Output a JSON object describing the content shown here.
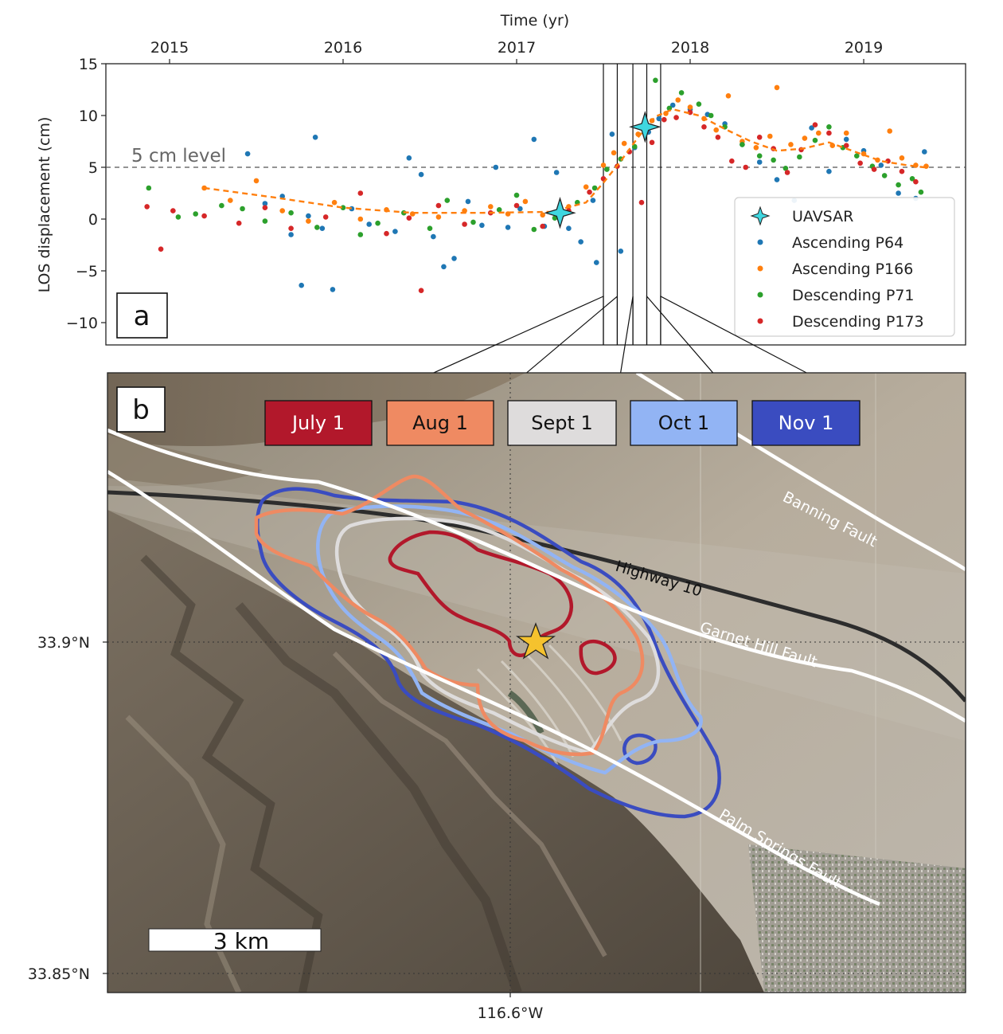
{
  "chart_data": [
    {
      "panel": "a",
      "type": "scatter",
      "xlabel": "Time (yr)",
      "ylabel": "LOS displacement (cm)",
      "xlim": [
        2014.6,
        2019.6
      ],
      "ylim": [
        -12,
        15
      ],
      "x_ticks": [
        "2015",
        "2016",
        "2017",
        "2018",
        "2019"
      ],
      "y_ticks": [
        "15",
        "10",
        "5",
        "0",
        "−5",
        "−10"
      ],
      "reference_line": {
        "y": 5,
        "label": "5 cm level",
        "style": "dashed",
        "color": "#555555"
      },
      "event_lines": [
        2017.5,
        2017.58,
        2017.67,
        2017.75,
        2017.83
      ],
      "legend_position": "lower right",
      "grid": false,
      "series": [
        {
          "name": "UAVSAR",
          "kind": "star",
          "color": "#3fd7e0",
          "points": [
            [
              2017.25,
              0.6
            ],
            [
              2017.74,
              8.9
            ]
          ]
        },
        {
          "name": "Ascending P64",
          "kind": "dot",
          "color": "#1f77b4",
          "points": [
            [
              2015.45,
              6.3
            ],
            [
              2015.55,
              1.5
            ],
            [
              2015.65,
              2.2
            ],
            [
              2015.7,
              -1.5
            ],
            [
              2015.76,
              -6.4
            ],
            [
              2015.8,
              0.3
            ],
            [
              2015.84,
              7.9
            ],
            [
              2015.88,
              -0.9
            ],
            [
              2015.94,
              -6.8
            ],
            [
              2016.05,
              1.0
            ],
            [
              2016.15,
              -0.5
            ],
            [
              2016.3,
              -1.2
            ],
            [
              2016.38,
              5.9
            ],
            [
              2016.45,
              4.3
            ],
            [
              2016.52,
              -1.7
            ],
            [
              2016.58,
              -4.6
            ],
            [
              2016.64,
              -3.8
            ],
            [
              2016.72,
              1.7
            ],
            [
              2016.8,
              -0.6
            ],
            [
              2016.88,
              5.0
            ],
            [
              2016.95,
              -0.8
            ],
            [
              2017.02,
              1.0
            ],
            [
              2017.1,
              7.7
            ],
            [
              2017.16,
              -0.7
            ],
            [
              2017.23,
              4.5
            ],
            [
              2017.3,
              -0.9
            ],
            [
              2017.37,
              -2.2
            ],
            [
              2017.44,
              1.8
            ],
            [
              2017.46,
              -4.2
            ],
            [
              2017.55,
              8.2
            ],
            [
              2017.6,
              -3.1
            ],
            [
              2017.68,
              6.9
            ],
            [
              2017.76,
              8.4
            ],
            [
              2017.82,
              9.7
            ],
            [
              2017.9,
              11.0
            ],
            [
              2018.0,
              10.6
            ],
            [
              2018.1,
              10.1
            ],
            [
              2018.2,
              9.2
            ],
            [
              2018.3,
              7.2
            ],
            [
              2018.4,
              5.5
            ],
            [
              2018.5,
              3.8
            ],
            [
              2018.6,
              1.8
            ],
            [
              2018.7,
              8.8
            ],
            [
              2018.8,
              4.6
            ],
            [
              2018.9,
              7.7
            ],
            [
              2019.0,
              6.6
            ],
            [
              2019.1,
              5.2
            ],
            [
              2019.2,
              2.5
            ],
            [
              2019.3,
              2.0
            ],
            [
              2019.35,
              6.5
            ]
          ]
        },
        {
          "name": "Ascending P166",
          "kind": "dot",
          "color": "#ff7f0e",
          "points": [
            [
              2015.2,
              3.0
            ],
            [
              2015.35,
              1.8
            ],
            [
              2015.5,
              3.7
            ],
            [
              2015.65,
              0.8
            ],
            [
              2015.8,
              -0.2
            ],
            [
              2015.95,
              1.6
            ],
            [
              2016.1,
              0.0
            ],
            [
              2016.25,
              0.9
            ],
            [
              2016.4,
              0.5
            ],
            [
              2016.55,
              0.2
            ],
            [
              2016.7,
              0.8
            ],
            [
              2016.85,
              1.2
            ],
            [
              2016.95,
              0.5
            ],
            [
              2017.05,
              1.7
            ],
            [
              2017.15,
              0.4
            ],
            [
              2017.3,
              1.2
            ],
            [
              2017.4,
              3.1
            ],
            [
              2017.5,
              5.2
            ],
            [
              2017.56,
              6.4
            ],
            [
              2017.62,
              7.3
            ],
            [
              2017.7,
              8.2
            ],
            [
              2017.78,
              9.5
            ],
            [
              2017.86,
              10.2
            ],
            [
              2017.93,
              11.5
            ],
            [
              2018.0,
              10.8
            ],
            [
              2018.08,
              9.7
            ],
            [
              2018.15,
              8.6
            ],
            [
              2018.22,
              11.9
            ],
            [
              2018.3,
              7.5
            ],
            [
              2018.38,
              6.9
            ],
            [
              2018.46,
              8.0
            ],
            [
              2018.5,
              12.7
            ],
            [
              2018.58,
              7.2
            ],
            [
              2018.66,
              7.8
            ],
            [
              2018.74,
              8.3
            ],
            [
              2018.82,
              7.1
            ],
            [
              2018.9,
              8.3
            ],
            [
              2019.0,
              6.3
            ],
            [
              2019.08,
              5.7
            ],
            [
              2019.15,
              8.5
            ],
            [
              2019.22,
              5.9
            ],
            [
              2019.3,
              5.2
            ],
            [
              2019.36,
              5.1
            ]
          ]
        },
        {
          "name": "Descending P71",
          "kind": "dot",
          "color": "#2ca02c",
          "points": [
            [
              2014.88,
              3.0
            ],
            [
              2015.05,
              0.2
            ],
            [
              2015.15,
              0.5
            ],
            [
              2015.3,
              1.3
            ],
            [
              2015.42,
              1.0
            ],
            [
              2015.55,
              -0.2
            ],
            [
              2015.7,
              0.6
            ],
            [
              2015.85,
              -0.8
            ],
            [
              2016.0,
              1.1
            ],
            [
              2016.1,
              -1.5
            ],
            [
              2016.2,
              -0.4
            ],
            [
              2016.35,
              0.6
            ],
            [
              2016.5,
              -0.9
            ],
            [
              2016.6,
              1.8
            ],
            [
              2016.75,
              -0.3
            ],
            [
              2016.9,
              0.9
            ],
            [
              2017.0,
              2.3
            ],
            [
              2017.1,
              -1.0
            ],
            [
              2017.22,
              0.1
            ],
            [
              2017.35,
              1.6
            ],
            [
              2017.45,
              3.0
            ],
            [
              2017.52,
              4.8
            ],
            [
              2017.6,
              5.8
            ],
            [
              2017.68,
              7.0
            ],
            [
              2017.76,
              8.8
            ],
            [
              2017.8,
              13.4
            ],
            [
              2017.88,
              10.7
            ],
            [
              2017.95,
              12.2
            ],
            [
              2018.05,
              11.1
            ],
            [
              2018.12,
              10.0
            ],
            [
              2018.2,
              8.9
            ],
            [
              2018.3,
              7.2
            ],
            [
              2018.4,
              6.1
            ],
            [
              2018.48,
              5.7
            ],
            [
              2018.55,
              4.9
            ],
            [
              2018.63,
              6.0
            ],
            [
              2018.72,
              7.6
            ],
            [
              2018.8,
              8.9
            ],
            [
              2018.88,
              6.9
            ],
            [
              2018.96,
              6.1
            ],
            [
              2019.05,
              5.1
            ],
            [
              2019.12,
              4.2
            ],
            [
              2019.2,
              3.3
            ],
            [
              2019.28,
              3.9
            ],
            [
              2019.33,
              2.6
            ]
          ]
        },
        {
          "name": "Descending P173",
          "kind": "dot",
          "color": "#d62728",
          "points": [
            [
              2014.87,
              1.2
            ],
            [
              2014.95,
              -2.9
            ],
            [
              2015.02,
              0.8
            ],
            [
              2015.2,
              0.3
            ],
            [
              2015.4,
              -0.4
            ],
            [
              2015.55,
              1.1
            ],
            [
              2015.7,
              -0.9
            ],
            [
              2015.9,
              0.2
            ],
            [
              2016.1,
              2.5
            ],
            [
              2016.25,
              -1.4
            ],
            [
              2016.38,
              0.1
            ],
            [
              2016.45,
              -6.9
            ],
            [
              2016.55,
              1.3
            ],
            [
              2016.7,
              -0.5
            ],
            [
              2016.85,
              0.6
            ],
            [
              2017.0,
              1.3
            ],
            [
              2017.15,
              -0.7
            ],
            [
              2017.3,
              0.8
            ],
            [
              2017.42,
              2.6
            ],
            [
              2017.5,
              3.9
            ],
            [
              2017.58,
              5.1
            ],
            [
              2017.65,
              6.5
            ],
            [
              2017.72,
              1.6
            ],
            [
              2017.78,
              7.4
            ],
            [
              2017.85,
              9.6
            ],
            [
              2017.92,
              9.8
            ],
            [
              2018.0,
              10.3
            ],
            [
              2018.08,
              8.9
            ],
            [
              2018.16,
              7.9
            ],
            [
              2018.24,
              5.6
            ],
            [
              2018.32,
              5.0
            ],
            [
              2018.4,
              7.9
            ],
            [
              2018.48,
              6.8
            ],
            [
              2018.56,
              4.5
            ],
            [
              2018.64,
              6.7
            ],
            [
              2018.72,
              9.1
            ],
            [
              2018.8,
              8.3
            ],
            [
              2018.9,
              7.1
            ],
            [
              2018.98,
              5.4
            ],
            [
              2019.06,
              4.8
            ],
            [
              2019.14,
              5.6
            ],
            [
              2019.22,
              4.6
            ],
            [
              2019.3,
              3.6
            ]
          ]
        }
      ],
      "trend": {
        "color": "#ff7f0e",
        "style": "dashed",
        "points": [
          [
            2015.2,
            3.0
          ],
          [
            2015.6,
            2.1
          ],
          [
            2016.0,
            1.1
          ],
          [
            2016.4,
            0.6
          ],
          [
            2016.8,
            0.6
          ],
          [
            2017.2,
            0.7
          ],
          [
            2017.4,
            1.6
          ],
          [
            2017.5,
            3.5
          ],
          [
            2017.6,
            5.6
          ],
          [
            2017.7,
            7.9
          ],
          [
            2017.8,
            9.9
          ],
          [
            2017.9,
            10.6
          ],
          [
            2018.05,
            10.0
          ],
          [
            2018.2,
            8.7
          ],
          [
            2018.35,
            7.5
          ],
          [
            2018.5,
            6.6
          ],
          [
            2018.65,
            6.8
          ],
          [
            2018.8,
            7.4
          ],
          [
            2018.95,
            6.5
          ],
          [
            2019.1,
            5.6
          ],
          [
            2019.25,
            5.2
          ],
          [
            2019.35,
            5.0
          ]
        ]
      }
    },
    {
      "panel": "b",
      "type": "map",
      "y_ticks": [
        "33.9°N",
        "33.85°N"
      ],
      "x_ticks": [
        "116.6°W"
      ],
      "epicenter_marker": "star",
      "contour_legend": [
        {
          "label": "July 1",
          "color": "#b2182b",
          "text_color": "#ffffff"
        },
        {
          "label": "Aug 1",
          "color": "#ef8a62",
          "text_color": "#111111"
        },
        {
          "label": "Sept 1",
          "color": "#dedcdc",
          "text_color": "#111111"
        },
        {
          "label": "Oct 1",
          "color": "#92b4f4",
          "text_color": "#111111"
        },
        {
          "label": "Nov 1",
          "color": "#3a4cc0",
          "text_color": "#ffffff"
        }
      ],
      "labels": {
        "banning": "Banning Fault",
        "highway": "Highway 10",
        "garnet": "Garnet Hill Fault",
        "palm": "Palm Springs Fault",
        "scale": "3 km"
      }
    }
  ],
  "panel_labels": [
    "a",
    "b"
  ]
}
